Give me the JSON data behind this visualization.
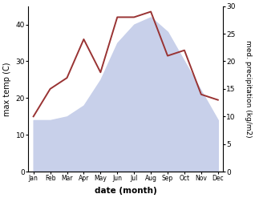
{
  "months": [
    "Jan",
    "Feb",
    "Mar",
    "Apr",
    "May",
    "Jun",
    "Jul",
    "Aug",
    "Sep",
    "Oct",
    "Nov",
    "Dec"
  ],
  "temp_max": [
    14,
    14,
    15,
    18,
    25,
    35,
    40,
    42,
    38,
    30,
    22,
    14
  ],
  "precip": [
    10,
    15,
    17,
    24,
    18,
    28,
    28,
    29,
    21,
    22,
    14,
    13
  ],
  "temp_fill_color": "#c8d0ea",
  "precip_color": "#993333",
  "temp_ylim": [
    0,
    45
  ],
  "precip_ylim": [
    0,
    30
  ],
  "temp_yticks": [
    0,
    10,
    20,
    30,
    40
  ],
  "precip_yticks": [
    0,
    5,
    10,
    15,
    20,
    25,
    30
  ],
  "xlabel": "date (month)",
  "ylabel_left": "max temp (C)",
  "ylabel_right": "med. precipitation (kg/m2)",
  "background_color": "#ffffff",
  "figwidth": 3.18,
  "figheight": 2.47,
  "dpi": 100
}
